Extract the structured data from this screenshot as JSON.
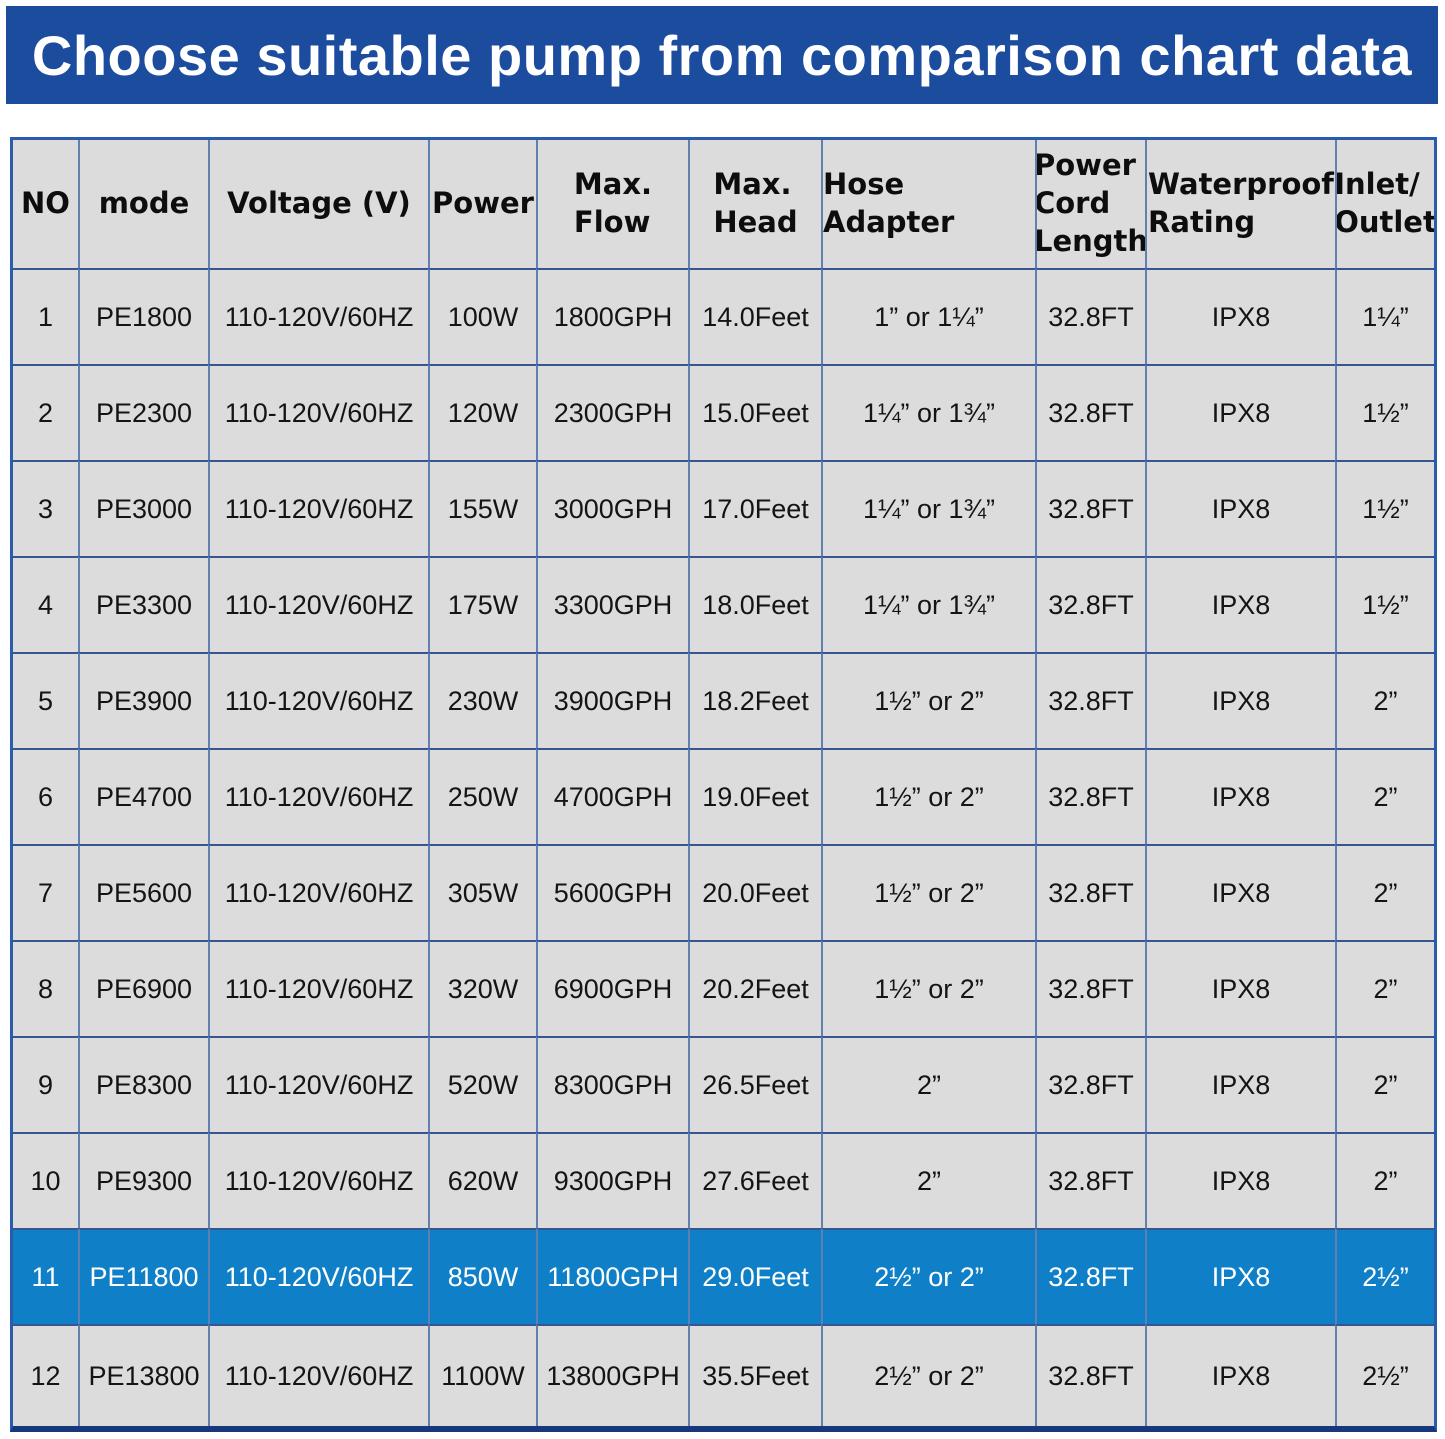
{
  "banner": {
    "bg_color": "#1c4c9e",
    "text_color": "#ffffff"
  },
  "colors": {
    "highlight_row_bg": "#0f80c8",
    "cell_bg": "#dcdcdc",
    "column_line": "#6080b0",
    "row_line": "#35568e",
    "outer_border": "#2b5cab",
    "outer_border_bottom": "#16387c"
  },
  "chart_data": {
    "type": "table",
    "title": "Choose suitable pump from comparison chart data",
    "columns": [
      "NO",
      "mode",
      "Voltage (V)",
      "Power",
      "Max.\nFlow",
      "Max.\nHead",
      "Hose Adapter",
      "Power\nCord\nLength",
      "Waterproof\nRating",
      "Inlet/\nOutlet"
    ],
    "rows": [
      [
        "1",
        "PE1800",
        "110-120V/60HZ",
        "100W",
        "1800GPH",
        "14.0Feet",
        "1” or 1¼”",
        "32.8FT",
        "IPX8",
        "1¼”"
      ],
      [
        "2",
        "PE2300",
        "110-120V/60HZ",
        "120W",
        "2300GPH",
        "15.0Feet",
        "1¼” or 1¾”",
        "32.8FT",
        "IPX8",
        "1½”"
      ],
      [
        "3",
        "PE3000",
        "110-120V/60HZ",
        "155W",
        "3000GPH",
        "17.0Feet",
        "1¼” or 1¾”",
        "32.8FT",
        "IPX8",
        "1½”"
      ],
      [
        "4",
        "PE3300",
        "110-120V/60HZ",
        "175W",
        "3300GPH",
        "18.0Feet",
        "1¼” or 1¾”",
        "32.8FT",
        "IPX8",
        "1½”"
      ],
      [
        "5",
        "PE3900",
        "110-120V/60HZ",
        "230W",
        "3900GPH",
        "18.2Feet",
        "1½” or 2”",
        "32.8FT",
        "IPX8",
        "2”"
      ],
      [
        "6",
        "PE4700",
        "110-120V/60HZ",
        "250W",
        "4700GPH",
        "19.0Feet",
        "1½” or 2”",
        "32.8FT",
        "IPX8",
        "2”"
      ],
      [
        "7",
        "PE5600",
        "110-120V/60HZ",
        "305W",
        "5600GPH",
        "20.0Feet",
        "1½” or 2”",
        "32.8FT",
        "IPX8",
        "2”"
      ],
      [
        "8",
        "PE6900",
        "110-120V/60HZ",
        "320W",
        "6900GPH",
        "20.2Feet",
        "1½” or 2”",
        "32.8FT",
        "IPX8",
        "2”"
      ],
      [
        "9",
        "PE8300",
        "110-120V/60HZ",
        "520W",
        "8300GPH",
        "26.5Feet",
        "2”",
        "32.8FT",
        "IPX8",
        "2”"
      ],
      [
        "10",
        "PE9300",
        "110-120V/60HZ",
        "620W",
        "9300GPH",
        "27.6Feet",
        "2”",
        "32.8FT",
        "IPX8",
        "2”"
      ],
      [
        "11",
        "PE11800",
        "110-120V/60HZ",
        "850W",
        "11800GPH",
        "29.0Feet",
        "2½” or 2”",
        "32.8FT",
        "IPX8",
        "2½”"
      ],
      [
        "12",
        "PE13800",
        "110-120V/60HZ",
        "1100W",
        "13800GPH",
        "35.5Feet",
        "2½” or 2”",
        "32.8FT",
        "IPX8",
        "2½”"
      ]
    ],
    "highlighted_row_index": 10,
    "layout": {
      "grid": "on",
      "header_row": true
    }
  }
}
